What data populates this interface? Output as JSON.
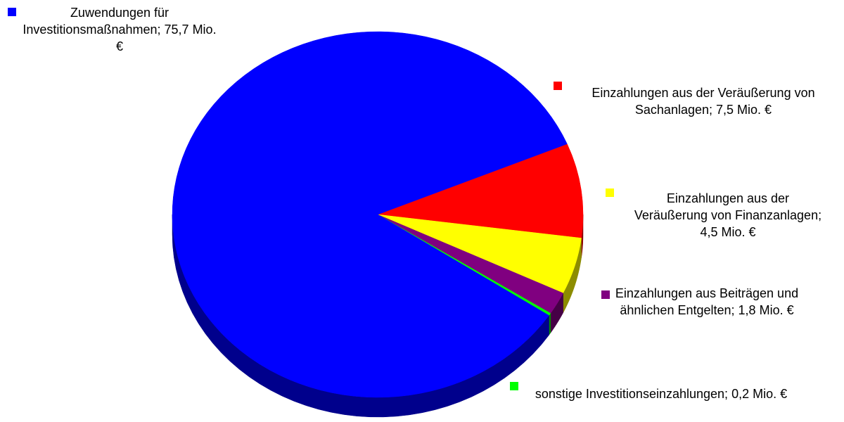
{
  "chart_data": {
    "type": "pie3d",
    "categories": [
      "Einzahlungen aus der Veräußerung von Sachanlagen",
      "Einzahlungen aus der Veräußerung von Finanzanlagen",
      "Einzahlungen aus Beiträgen und ähnlichen Entgelten",
      "sonstige Investitionseinzahlungen",
      "Zuwendungen für Investitionsmaßnahmen"
    ],
    "values": [
      7.5,
      4.5,
      1.8,
      0.2,
      75.7
    ],
    "value_labels": [
      "7,5 Mio. €",
      "4,5 Mio. €",
      "1,8 Mio. €",
      "0,2 Mio. €",
      "75,7 Mio. €"
    ],
    "label_separator": ";",
    "colors": [
      "#ff0000",
      "#ffff00",
      "#800080",
      "#00ff00",
      "#0000ff"
    ]
  }
}
